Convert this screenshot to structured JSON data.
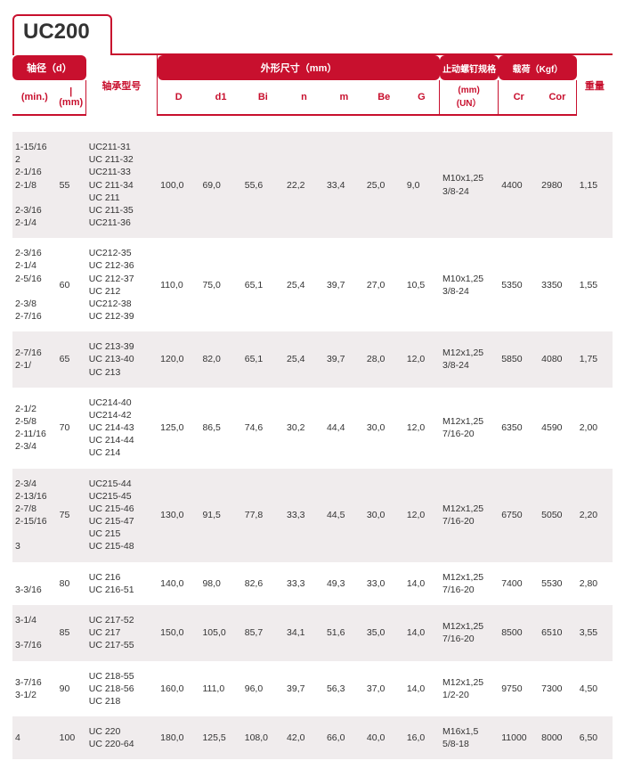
{
  "title": "UC200",
  "colors": {
    "brand": "#c8102e",
    "text": "#333333",
    "altRow": "#f0eced",
    "background": "#ffffff"
  },
  "header": {
    "group_shaft": "轴径（d）",
    "group_dims": "外形尺寸（mm）",
    "group_bolt": "止动螺钉规格",
    "group_load": "载荷（Kgf）",
    "min": "(min.)",
    "mm": "| (mm)",
    "model": "轴承型号",
    "D": "D",
    "d1": "d1",
    "Bi": "Bi",
    "n": "n",
    "m": "m",
    "Be": "Be",
    "G": "G",
    "bolt_sub": "(mm)\n(UN）",
    "Cr": "Cr",
    "Cor": "Cor",
    "weight": "重量"
  },
  "rows": [
    {
      "min": "1-15/16\n2\n2-1/16\n2-1/8\n\n2-3/16\n2-1/4",
      "mm": "55",
      "model": "UC211-31\nUC 211-32\nUC211-33\nUC 211-34\nUC 211\nUC 211-35\nUC211-36",
      "D": "100,0",
      "d1": "69,0",
      "Bi": "55,6",
      "n": "22,2",
      "m": "33,4",
      "Be": "25,0",
      "G": "9,0",
      "bolt": "M10x1,25\n3/8-24",
      "Cr": "4400",
      "Cor": "2980",
      "wt": "1,15"
    },
    {
      "min": "2-3/16\n2-1/4\n2-5/16\n\n2-3/8\n2-7/16",
      "mm": "60",
      "model": "UC212-35\nUC 212-36\nUC 212-37\nUC 212\nUC212-38\nUC 212-39",
      "D": "110,0",
      "d1": "75,0",
      "Bi": "65,1",
      "n": "25,4",
      "m": "39,7",
      "Be": "27,0",
      "G": "10,5",
      "bolt": "M10x1,25\n3/8-24",
      "Cr": "5350",
      "Cor": "3350",
      "wt": "1,55"
    },
    {
      "min": "2-7/16\n2-1/",
      "mm": "65",
      "model": "UC 213-39\nUC 213-40\nUC 213",
      "D": "120,0",
      "d1": "82,0",
      "Bi": "65,1",
      "n": "25,4",
      "m": "39,7",
      "Be": "28,0",
      "G": "12,0",
      "bolt": "M12x1,25\n3/8-24",
      "Cr": "5850",
      "Cor": "4080",
      "wt": "1,75"
    },
    {
      "min": "2-1/2\n2-5/8\n2-11/16\n2-3/4",
      "mm": "70",
      "model": "UC214-40\nUC214-42\nUC 214-43\nUC 214-44\nUC 214",
      "D": "125,0",
      "d1": "86,5",
      "Bi": "74,6",
      "n": "30,2",
      "m": "44,4",
      "Be": "30,0",
      "G": "12,0",
      "bolt": "M12x1,25\n7/16-20",
      "Cr": "6350",
      "Cor": "4590",
      "wt": "2,00"
    },
    {
      "min": "2-3/4\n2-13/16\n2-7/8\n2-15/16\n\n3",
      "mm": "75",
      "model": "UC215-44\nUC215-45\nUC 215-46\nUC 215-47\nUC 215\nUC 215-48",
      "D": "130,0",
      "d1": "91,5",
      "Bi": "77,8",
      "n": "33,3",
      "m": "44,5",
      "Be": "30,0",
      "G": "12,0",
      "bolt": "M12x1,25\n7/16-20",
      "Cr": "6750",
      "Cor": "5050",
      "wt": "2,20"
    },
    {
      "min": "\n3-3/16",
      "mm": "80",
      "model": "UC 216\nUC 216-51",
      "D": "140,0",
      "d1": "98,0",
      "Bi": "82,6",
      "n": "33,3",
      "m": "49,3",
      "Be": "33,0",
      "G": "14,0",
      "bolt": "M12x1,25\n7/16-20",
      "Cr": "7400",
      "Cor": "5530",
      "wt": "2,80"
    },
    {
      "min": "3-1/4\n\n3-7/16",
      "mm": "85",
      "model": "UC 217-52\nUC 217\nUC 217-55",
      "D": "150,0",
      "d1": "105,0",
      "Bi": "85,7",
      "n": "34,1",
      "m": "51,6",
      "Be": "35,0",
      "G": "14,0",
      "bolt": "M12x1,25\n7/16-20",
      "Cr": "8500",
      "Cor": "6510",
      "wt": "3,55"
    },
    {
      "min": "3-7/16\n3-1/2",
      "mm": "90",
      "model": "UC 218-55\nUC 218-56\nUC 218",
      "D": "160,0",
      "d1": "111,0",
      "Bi": "96,0",
      "n": "39,7",
      "m": "56,3",
      "Be": "37,0",
      "G": "14,0",
      "bolt": "M12x1,25\n1/2-20",
      "Cr": "9750",
      "Cor": "7300",
      "wt": "4,50"
    },
    {
      "min": "4",
      "mm": "100",
      "model": "UC 220\nUC 220-64",
      "D": "180,0",
      "d1": "125,5",
      "Bi": "108,0",
      "n": "42,0",
      "m": "66,0",
      "Be": "40,0",
      "G": "16,0",
      "bolt": "M16x1,5\n5/8-18",
      "Cr": "11000",
      "Cor": "8000",
      "wt": "6,50"
    }
  ]
}
